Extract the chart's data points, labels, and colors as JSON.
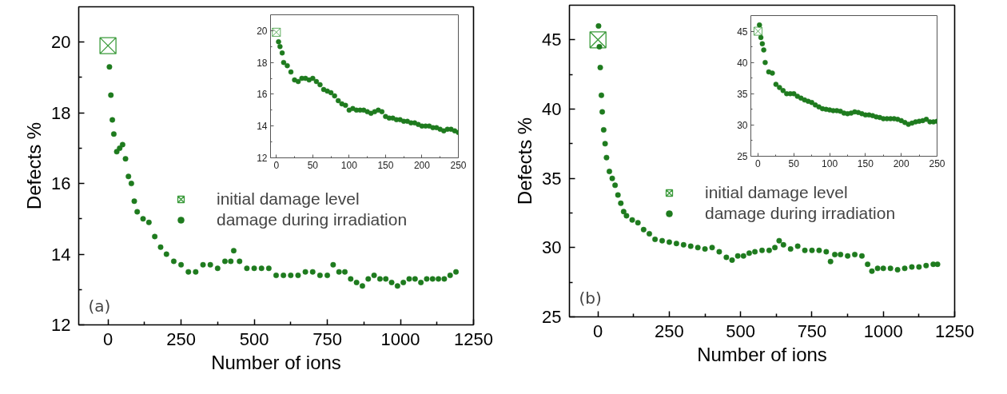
{
  "chart_data": [
    {
      "type": "scatter",
      "xlabel": "Number of ions",
      "ylabel": "Defects %",
      "xlim": [
        -100,
        1250
      ],
      "ylim": [
        12,
        21
      ],
      "xticks": [
        0,
        250,
        500,
        750,
        1000,
        1250
      ],
      "yticks": [
        12,
        14,
        16,
        18,
        20
      ],
      "legend": "right",
      "annotations": [
        "(a)"
      ],
      "series": [
        {
          "name": "initial damage level",
          "color": "#3a9a3a",
          "marker": "cross",
          "x": [
            0
          ],
          "values": [
            19.9
          ]
        },
        {
          "name": "damage during irradiation",
          "color": "#1e7b1e",
          "marker": "circle",
          "x": [
            5,
            10,
            15,
            20,
            30,
            40,
            50,
            60,
            70,
            80,
            90,
            100,
            120,
            140,
            160,
            180,
            200,
            225,
            250,
            275,
            300,
            325,
            350,
            375,
            400,
            420,
            430,
            450,
            475,
            500,
            525,
            550,
            575,
            600,
            625,
            650,
            675,
            700,
            725,
            750,
            770,
            790,
            810,
            830,
            850,
            870,
            890,
            910,
            930,
            950,
            970,
            990,
            1010,
            1030,
            1050,
            1070,
            1090,
            1110,
            1130,
            1150,
            1170,
            1190
          ],
          "values": [
            19.3,
            18.5,
            17.8,
            17.4,
            16.9,
            17.0,
            17.1,
            16.7,
            16.2,
            16.0,
            15.5,
            15.2,
            15.0,
            14.9,
            14.5,
            14.2,
            14.0,
            13.8,
            13.7,
            13.5,
            13.5,
            13.7,
            13.7,
            13.6,
            13.8,
            13.8,
            14.1,
            13.8,
            13.6,
            13.6,
            13.6,
            13.6,
            13.4,
            13.4,
            13.4,
            13.4,
            13.5,
            13.5,
            13.4,
            13.4,
            13.7,
            13.5,
            13.5,
            13.3,
            13.2,
            13.1,
            13.3,
            13.4,
            13.3,
            13.3,
            13.2,
            13.1,
            13.2,
            13.3,
            13.3,
            13.2,
            13.3,
            13.3,
            13.3,
            13.3,
            13.4,
            13.5
          ]
        }
      ]
    },
    {
      "type": "scatter",
      "xlim": [
        -8,
        250
      ],
      "ylim": [
        12,
        21
      ],
      "xticks": [
        0,
        50,
        100,
        150,
        200,
        250
      ],
      "yticks": [
        12,
        14,
        16,
        18,
        20
      ],
      "series": [
        {
          "color": "#3a9a3a",
          "marker": "cross",
          "x": [
            0
          ],
          "values": [
            19.9
          ]
        },
        {
          "color": "#1e7b1e",
          "marker": "circle",
          "x": [
            3,
            5,
            8,
            10,
            15,
            20,
            25,
            30,
            35,
            40,
            45,
            50,
            55,
            60,
            65,
            70,
            75,
            80,
            85,
            90,
            95,
            100,
            105,
            110,
            115,
            120,
            125,
            130,
            135,
            140,
            145,
            150,
            155,
            160,
            165,
            170,
            175,
            180,
            185,
            190,
            195,
            200,
            205,
            210,
            215,
            220,
            225,
            230,
            235,
            240,
            245,
            250
          ],
          "values": [
            19.3,
            19.0,
            18.6,
            18.0,
            17.8,
            17.4,
            16.9,
            16.8,
            17.0,
            17.0,
            16.9,
            17.0,
            16.8,
            16.6,
            16.3,
            16.2,
            16.1,
            15.9,
            15.6,
            15.4,
            15.3,
            15.0,
            15.1,
            15.0,
            15.0,
            15.0,
            14.9,
            14.8,
            14.9,
            15.0,
            14.9,
            14.6,
            14.5,
            14.5,
            14.4,
            14.4,
            14.3,
            14.3,
            14.2,
            14.2,
            14.1,
            14.0,
            14.0,
            14.0,
            13.9,
            13.9,
            13.8,
            13.7,
            13.8,
            13.8,
            13.7,
            13.6
          ]
        }
      ]
    },
    {
      "type": "scatter",
      "xlabel": "Number of ions",
      "ylabel": "Defects %",
      "xlim": [
        -100,
        1250
      ],
      "ylim": [
        25,
        47.5
      ],
      "xticks": [
        0,
        250,
        500,
        750,
        1000,
        1250
      ],
      "yticks": [
        25,
        30,
        35,
        40,
        45
      ],
      "legend": "right",
      "annotations": [
        "(b)"
      ],
      "series": [
        {
          "name": "initial damage level",
          "color": "#3a9a3a",
          "marker": "cross",
          "x": [
            0
          ],
          "values": [
            45
          ]
        },
        {
          "name": "damage during irradiation",
          "color": "#1e7b1e",
          "marker": "circle",
          "x": [
            2,
            5,
            8,
            12,
            15,
            20,
            25,
            30,
            40,
            50,
            60,
            70,
            80,
            90,
            100,
            120,
            140,
            160,
            180,
            200,
            225,
            250,
            275,
            300,
            325,
            350,
            375,
            400,
            425,
            450,
            470,
            490,
            510,
            530,
            550,
            575,
            600,
            620,
            635,
            650,
            675,
            700,
            725,
            750,
            775,
            800,
            815,
            830,
            850,
            875,
            900,
            925,
            945,
            960,
            980,
            1000,
            1025,
            1050,
            1075,
            1100,
            1125,
            1150,
            1175,
            1190
          ],
          "values": [
            46.0,
            44.5,
            43.0,
            41.0,
            39.8,
            38.5,
            37.5,
            36.5,
            35.5,
            35.0,
            34.5,
            33.8,
            33.2,
            32.6,
            32.3,
            32.0,
            31.8,
            31.3,
            31.0,
            30.6,
            30.5,
            30.4,
            30.3,
            30.2,
            30.1,
            30.0,
            29.9,
            30.0,
            29.7,
            29.3,
            29.1,
            29.4,
            29.4,
            29.6,
            29.7,
            29.8,
            29.8,
            30.0,
            30.5,
            30.2,
            29.9,
            30.1,
            29.8,
            29.8,
            29.8,
            29.7,
            29.0,
            29.5,
            29.5,
            29.4,
            29.5,
            29.4,
            28.8,
            28.3,
            28.5,
            28.5,
            28.5,
            28.4,
            28.5,
            28.6,
            28.6,
            28.7,
            28.8,
            28.8
          ]
        }
      ]
    },
    {
      "type": "scatter",
      "xlim": [
        -10,
        250
      ],
      "ylim": [
        25,
        47.5
      ],
      "xticks": [
        0,
        50,
        100,
        150,
        200,
        250
      ],
      "yticks": [
        25,
        30,
        35,
        40,
        45
      ],
      "series": [
        {
          "color": "#3a9a3a",
          "marker": "cross",
          "x": [
            0
          ],
          "values": [
            45
          ]
        },
        {
          "color": "#1e7b1e",
          "marker": "circle",
          "x": [
            2,
            4,
            6,
            8,
            10,
            15,
            20,
            25,
            30,
            35,
            40,
            45,
            50,
            55,
            60,
            65,
            70,
            75,
            80,
            85,
            90,
            95,
            100,
            105,
            110,
            115,
            120,
            125,
            130,
            135,
            140,
            145,
            150,
            155,
            160,
            165,
            170,
            175,
            180,
            185,
            190,
            195,
            200,
            205,
            210,
            215,
            220,
            225,
            230,
            235,
            240,
            245,
            250
          ],
          "values": [
            46.0,
            44.0,
            43.0,
            42.0,
            40.0,
            38.5,
            38.3,
            36.5,
            36.0,
            35.5,
            35.0,
            35.0,
            35.0,
            34.6,
            34.3,
            34.0,
            33.8,
            33.6,
            33.2,
            32.9,
            32.6,
            32.5,
            32.4,
            32.3,
            32.3,
            32.2,
            31.9,
            31.8,
            31.9,
            32.1,
            32.0,
            31.8,
            31.6,
            31.6,
            31.5,
            31.3,
            31.2,
            31.0,
            31.0,
            31.0,
            31.0,
            30.9,
            30.7,
            30.4,
            30.1,
            30.3,
            30.5,
            30.6,
            30.7,
            30.9,
            30.5,
            30.5,
            30.6
          ]
        }
      ]
    }
  ]
}
